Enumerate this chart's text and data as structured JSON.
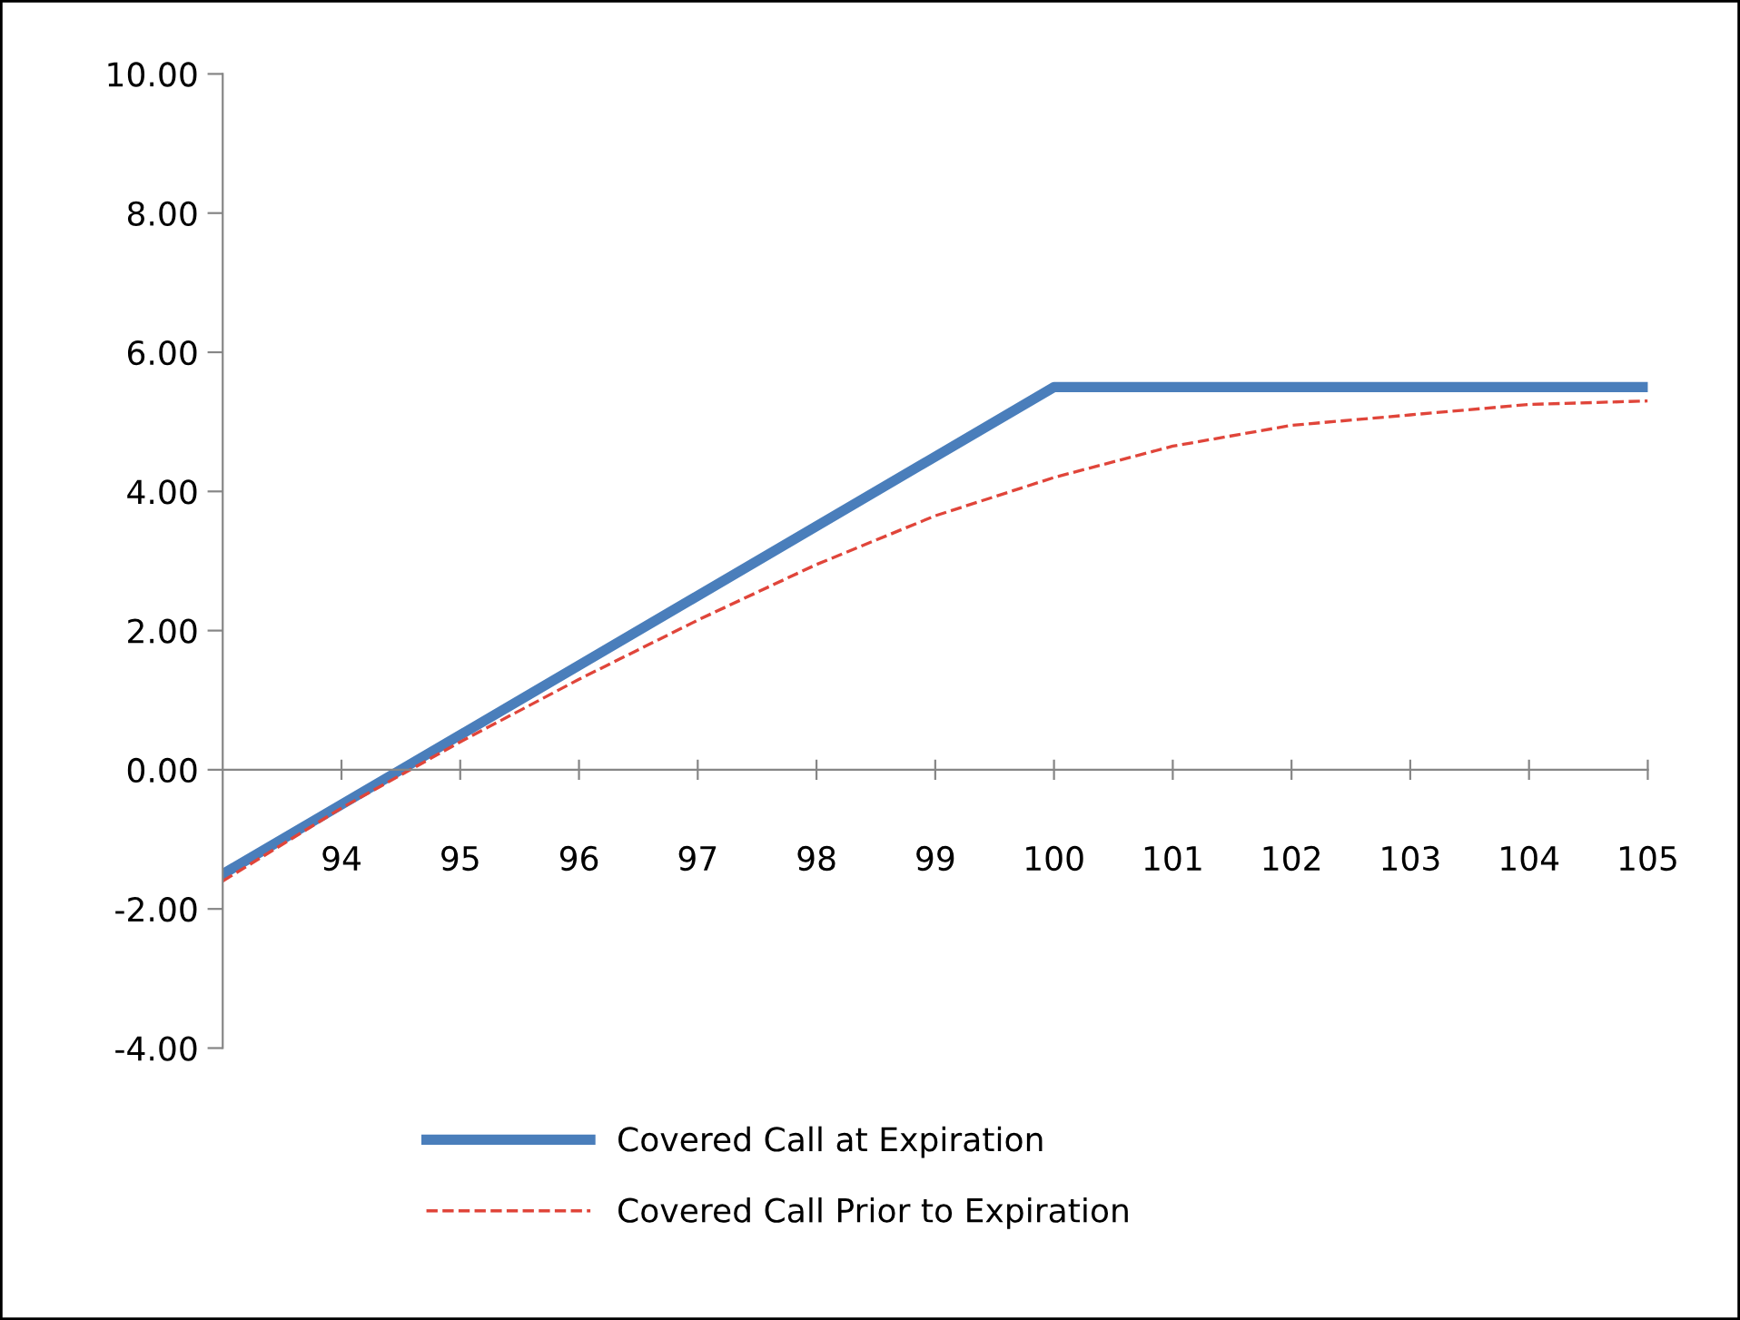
{
  "chart_data": {
    "type": "line",
    "xlim": [
      93,
      105
    ],
    "xticks": [
      94,
      95,
      96,
      97,
      98,
      99,
      100,
      101,
      102,
      103,
      104,
      105
    ],
    "ylim": [
      -4,
      10
    ],
    "yticks": [
      {
        "value": -4,
        "label": "-4.00"
      },
      {
        "value": -2,
        "label": "-2.00"
      },
      {
        "value": 0,
        "label": "0.00"
      },
      {
        "value": 2,
        "label": "2.00"
      },
      {
        "value": 4,
        "label": "4.00"
      },
      {
        "value": 6,
        "label": "6.00"
      },
      {
        "value": 8,
        "label": "8.00"
      },
      {
        "value": 10,
        "label": "10.00"
      }
    ],
    "grid": false,
    "legend": "bottom",
    "marker": "none",
    "series": [
      {
        "name": "Covered Call at Expiration",
        "color": "#4a7ebb",
        "line_style": "solid",
        "x": [
          93,
          100,
          105
        ],
        "values": [
          -1.5,
          5.5,
          5.5
        ]
      },
      {
        "name": "Covered Call Prior to Expiration",
        "color": "#e0453a",
        "line_style": "dashed",
        "x": [
          93,
          94,
          95,
          96,
          97,
          98,
          99,
          100,
          101,
          102,
          103,
          104,
          105
        ],
        "values": [
          -1.6,
          -0.55,
          0.4,
          1.3,
          2.15,
          2.95,
          3.65,
          4.2,
          4.65,
          4.95,
          5.1,
          5.25,
          5.3
        ]
      }
    ]
  }
}
